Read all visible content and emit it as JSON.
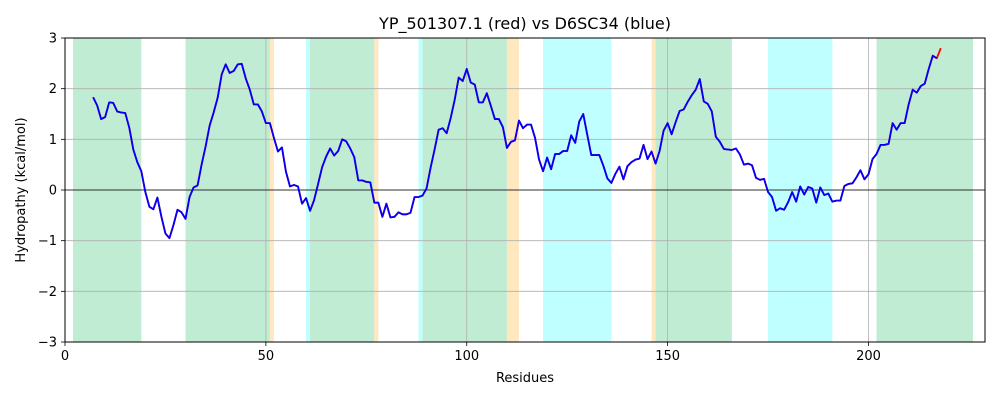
{
  "chart_data": {
    "type": "line",
    "title": "YP_501307.1 (red) vs D6SC34 (blue)",
    "xlabel": "Residues",
    "ylabel": "Hydropathy (kcal/mol)",
    "xlim": [
      0,
      229
    ],
    "ylim": [
      -3,
      3
    ],
    "xticks": [
      0,
      50,
      100,
      150,
      200
    ],
    "yticks": [
      -3,
      -2,
      -1,
      0,
      1,
      2,
      3
    ],
    "grid": true,
    "zero_line": true,
    "regions": [
      {
        "start": 2,
        "end": 19,
        "color": "#c0ecd4"
      },
      {
        "start": 30,
        "end": 51,
        "color": "#c0ecd4"
      },
      {
        "start": 51,
        "end": 52,
        "color": "#ffe8c0"
      },
      {
        "start": 60,
        "end": 61,
        "color": "#c0ffff"
      },
      {
        "start": 61,
        "end": 77,
        "color": "#c0ecd4"
      },
      {
        "start": 77,
        "end": 78,
        "color": "#ffe8c0"
      },
      {
        "start": 88,
        "end": 89,
        "color": "#c0ffff"
      },
      {
        "start": 89,
        "end": 110,
        "color": "#c0ecd4"
      },
      {
        "start": 110,
        "end": 113,
        "color": "#ffe8c0"
      },
      {
        "start": 119,
        "end": 136,
        "color": "#c0ffff"
      },
      {
        "start": 146,
        "end": 147,
        "color": "#ffe8c0"
      },
      {
        "start": 147,
        "end": 166,
        "color": "#c0ecd4"
      },
      {
        "start": 175,
        "end": 191,
        "color": "#c0ffff"
      },
      {
        "start": 202,
        "end": 226,
        "color": "#c0ecd4"
      }
    ],
    "series": [
      {
        "color": "#ff0000",
        "x_start": 7,
        "values": [
          1.83,
          1.67,
          1.4,
          1.44,
          1.73,
          1.72,
          1.55,
          1.53,
          1.52,
          1.23,
          0.8,
          0.55,
          0.37,
          -0.04,
          -0.33,
          -0.38,
          -0.15,
          -0.53,
          -0.86,
          -0.95,
          -0.69,
          -0.39,
          -0.44,
          -0.57,
          -0.14,
          0.05,
          0.09,
          0.5,
          0.86,
          1.27,
          1.53,
          1.82,
          2.28,
          2.48,
          2.31,
          2.35,
          2.48,
          2.49,
          2.2,
          1.98,
          1.69,
          1.69,
          1.55,
          1.32,
          1.32,
          1.03,
          0.76,
          0.84,
          0.36,
          0.07,
          0.1,
          0.07,
          -0.27,
          -0.16,
          -0.41,
          -0.2,
          0.12,
          0.45,
          0.66,
          0.82,
          0.68,
          0.77,
          1.0,
          0.96,
          0.82,
          0.65,
          0.19,
          0.19,
          0.16,
          0.15,
          -0.25,
          -0.25,
          -0.53,
          -0.27,
          -0.54,
          -0.53,
          -0.44,
          -0.48,
          -0.48,
          -0.45,
          -0.14,
          -0.14,
          -0.11,
          0.03,
          0.44,
          0.8,
          1.19,
          1.22,
          1.12,
          1.42,
          1.78,
          2.22,
          2.15,
          2.39,
          2.12,
          2.08,
          1.73,
          1.73,
          1.91,
          1.66,
          1.4,
          1.4,
          1.24,
          0.83,
          0.95,
          0.98,
          1.37,
          1.22,
          1.29,
          1.29,
          1.03,
          0.6,
          0.37,
          0.64,
          0.41,
          0.71,
          0.71,
          0.77,
          0.77,
          1.08,
          0.93,
          1.35,
          1.5,
          1.09,
          0.69,
          0.69,
          0.69,
          0.48,
          0.23,
          0.14,
          0.32,
          0.46,
          0.21,
          0.47,
          0.55,
          0.6,
          0.62,
          0.89,
          0.61,
          0.76,
          0.52,
          0.77,
          1.17,
          1.32,
          1.1,
          1.34,
          1.56,
          1.59,
          1.74,
          1.87,
          1.98,
          2.19,
          1.75,
          1.7,
          1.55,
          1.05,
          0.95,
          0.81,
          0.8,
          0.79,
          0.82,
          0.7,
          0.5,
          0.52,
          0.49,
          0.24,
          0.2,
          0.22,
          -0.04,
          -0.14,
          -0.41,
          -0.36,
          -0.39,
          -0.24,
          -0.04,
          -0.23,
          0.07,
          -0.09,
          0.06,
          0.03,
          -0.25,
          0.05,
          -0.1,
          -0.07,
          -0.23,
          -0.21,
          -0.21,
          0.08,
          0.12,
          0.13,
          0.25,
          0.39,
          0.21,
          0.31,
          0.61,
          0.71,
          0.89,
          0.89,
          0.91,
          1.32,
          1.19,
          1.32,
          1.32,
          1.69,
          1.98,
          1.92,
          2.05,
          2.1,
          2.39,
          2.65,
          2.6,
          2.8
        ]
      },
      {
        "color": "#0000ff",
        "x_start": 7,
        "values": [
          1.83,
          1.67,
          1.4,
          1.44,
          1.73,
          1.72,
          1.55,
          1.53,
          1.52,
          1.23,
          0.8,
          0.55,
          0.37,
          -0.04,
          -0.33,
          -0.38,
          -0.15,
          -0.53,
          -0.86,
          -0.95,
          -0.69,
          -0.39,
          -0.44,
          -0.57,
          -0.14,
          0.05,
          0.09,
          0.5,
          0.86,
          1.27,
          1.53,
          1.82,
          2.28,
          2.48,
          2.31,
          2.35,
          2.48,
          2.49,
          2.2,
          1.98,
          1.69,
          1.69,
          1.55,
          1.32,
          1.32,
          1.03,
          0.76,
          0.84,
          0.36,
          0.07,
          0.1,
          0.07,
          -0.27,
          -0.16,
          -0.41,
          -0.2,
          0.12,
          0.45,
          0.66,
          0.82,
          0.68,
          0.77,
          1.0,
          0.96,
          0.82,
          0.65,
          0.19,
          0.19,
          0.16,
          0.15,
          -0.25,
          -0.25,
          -0.53,
          -0.27,
          -0.54,
          -0.53,
          -0.44,
          -0.48,
          -0.48,
          -0.45,
          -0.14,
          -0.14,
          -0.11,
          0.03,
          0.44,
          0.8,
          1.19,
          1.22,
          1.12,
          1.42,
          1.78,
          2.22,
          2.15,
          2.39,
          2.12,
          2.08,
          1.73,
          1.73,
          1.91,
          1.66,
          1.4,
          1.4,
          1.24,
          0.83,
          0.95,
          0.98,
          1.37,
          1.22,
          1.29,
          1.29,
          1.03,
          0.6,
          0.37,
          0.64,
          0.41,
          0.71,
          0.71,
          0.77,
          0.77,
          1.08,
          0.93,
          1.35,
          1.5,
          1.09,
          0.69,
          0.69,
          0.69,
          0.48,
          0.23,
          0.14,
          0.32,
          0.46,
          0.21,
          0.47,
          0.55,
          0.6,
          0.62,
          0.89,
          0.61,
          0.76,
          0.52,
          0.77,
          1.17,
          1.32,
          1.1,
          1.34,
          1.56,
          1.59,
          1.74,
          1.87,
          1.98,
          2.19,
          1.75,
          1.7,
          1.55,
          1.05,
          0.95,
          0.81,
          0.8,
          0.79,
          0.82,
          0.7,
          0.5,
          0.52,
          0.49,
          0.24,
          0.2,
          0.22,
          -0.04,
          -0.14,
          -0.41,
          -0.36,
          -0.39,
          -0.24,
          -0.04,
          -0.23,
          0.07,
          -0.09,
          0.06,
          0.03,
          -0.25,
          0.05,
          -0.1,
          -0.07,
          -0.23,
          -0.21,
          -0.21,
          0.08,
          0.12,
          0.13,
          0.25,
          0.39,
          0.21,
          0.31,
          0.61,
          0.71,
          0.89,
          0.89,
          0.91,
          1.32,
          1.19,
          1.32,
          1.32,
          1.69,
          1.98,
          1.92,
          2.05,
          2.1,
          2.39,
          2.65,
          2.6
        ]
      }
    ]
  }
}
